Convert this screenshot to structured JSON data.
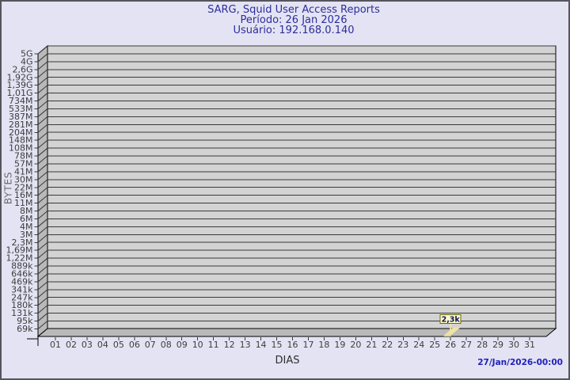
{
  "header": {
    "title": "SARG, Squid User Access Reports",
    "period": "Período: 26 Jan 2026",
    "user": "Usuário: 192.168.0.140"
  },
  "footer": {
    "generated": "27/Jan/2026-00:00"
  },
  "colors": {
    "background": "#e3e3f3",
    "frame_border": "#55555d",
    "plot_background": "#d3d3d3",
    "wall": "#b9b9b9",
    "gridline": "#3a3a3a",
    "plot_edge": "#000000",
    "title_text": "#2d2d9c",
    "timestamp_text": "#2121bb",
    "bar_top": "#efe3a3",
    "bar_front": "#dccf86",
    "annotation_background": "#fafad2",
    "annotation_border": "#6b6b00",
    "annotation_leader": "#eee4ac"
  },
  "chart_data": {
    "type": "bar",
    "title": "SARG, Squid User Access Reports",
    "subtitle": [
      "Período: 26 Jan 2026",
      "Usuário: 192.168.0.140"
    ],
    "xlabel": "DIAS",
    "ylabel": "BYTES",
    "y_scale": "log",
    "ylim": [
      69000,
      5000000000
    ],
    "grid": true,
    "legend_position": "none",
    "y_tick_labels": [
      "5G",
      "4G",
      "2,6G",
      "1,92G",
      "1,39G",
      "1,01G",
      "734M",
      "533M",
      "387M",
      "281M",
      "204M",
      "148M",
      "108M",
      "78M",
      "57M",
      "41M",
      "30M",
      "22M",
      "16M",
      "11M",
      "8M",
      "6M",
      "4M",
      "3M",
      "2,3M",
      "1,69M",
      "1,22M",
      "889k",
      "646k",
      "469k",
      "341k",
      "247k",
      "180k",
      "131k",
      "95k",
      "69k"
    ],
    "categories": [
      "01",
      "02",
      "03",
      "04",
      "05",
      "06",
      "07",
      "08",
      "09",
      "10",
      "11",
      "12",
      "13",
      "14",
      "15",
      "16",
      "17",
      "18",
      "19",
      "20",
      "21",
      "22",
      "23",
      "24",
      "25",
      "26",
      "27",
      "28",
      "29",
      "30",
      "31"
    ],
    "values": [
      0,
      0,
      0,
      0,
      0,
      0,
      0,
      0,
      0,
      0,
      0,
      0,
      0,
      0,
      0,
      0,
      0,
      0,
      0,
      0,
      0,
      0,
      0,
      0,
      0,
      2300,
      0,
      0,
      0,
      0,
      0
    ],
    "values_unit": "bytes",
    "annotation": {
      "label": "2,3k",
      "category": "26",
      "value": 2300
    }
  }
}
